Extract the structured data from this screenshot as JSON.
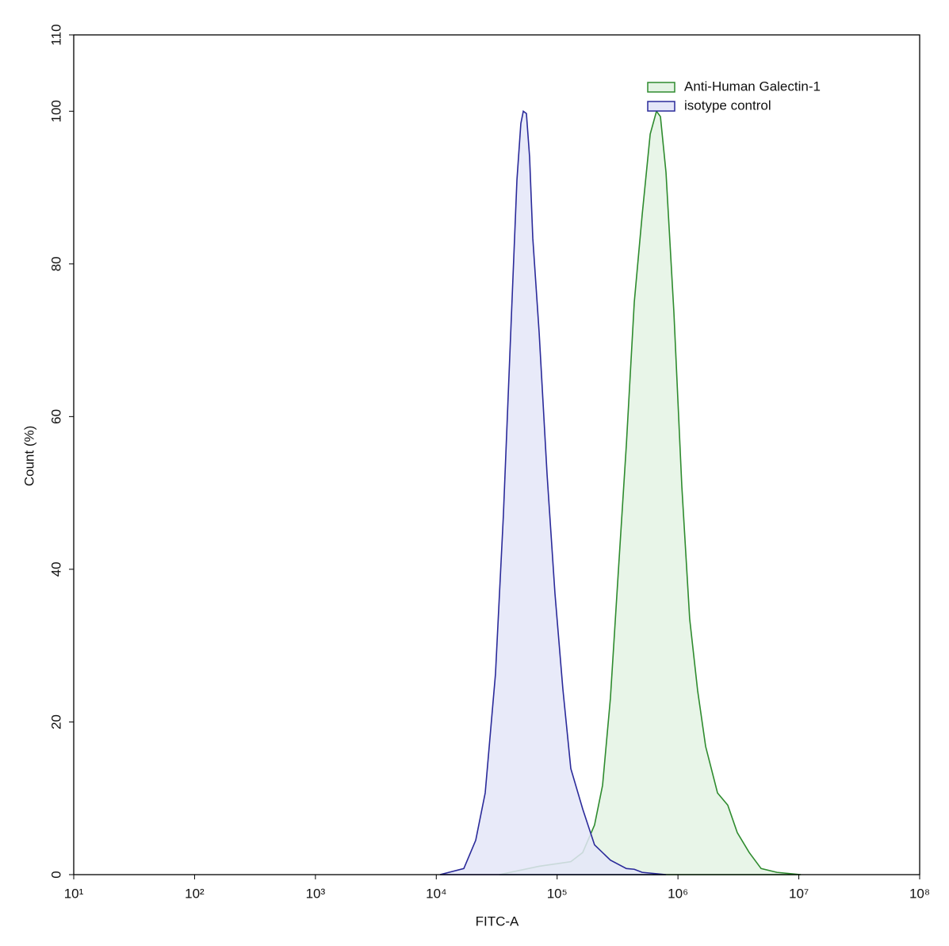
{
  "chart_data": {
    "type": "area",
    "x_label": "FITC-A",
    "y_label": "Count (%)",
    "log_x": true,
    "xlim": [
      10,
      100000000
    ],
    "xticks": [
      {
        "value": 10,
        "label": "10¹"
      },
      {
        "value": 100,
        "label": "10²"
      },
      {
        "value": 1000,
        "label": "10³"
      },
      {
        "value": 10000,
        "label": "10⁴"
      },
      {
        "value": 100000,
        "label": "10⁵"
      },
      {
        "value": 1000000,
        "label": "10⁶"
      },
      {
        "value": 10000000,
        "label": "10⁷"
      },
      {
        "value": 100000000,
        "label": "10⁸"
      }
    ],
    "ylim": [
      0,
      110
    ],
    "yticks": [
      0,
      20,
      40,
      60,
      80,
      100,
      110
    ],
    "legend": "upper right",
    "series": [
      {
        "name": "Anti-Human Galectin-1",
        "color": "#2e8b2e",
        "fill": "#e4f3e4",
        "x": [
          33300,
          71000,
          96000,
          129800,
          162800,
          204000,
          237700,
          276000,
          321000,
          374000,
          435000,
          506000,
          589000,
          664000,
          716000,
          796000,
          925000,
          1076000,
          1250000,
          1455000,
          1694000,
          2125000,
          2583000,
          3096000,
          3885000,
          4875000,
          6595000,
          10380000
        ],
        "values": [
          0,
          1.1,
          1.4,
          1.7,
          2.9,
          6.5,
          11.7,
          23.1,
          39.7,
          56.3,
          75,
          86.5,
          97,
          100,
          99.3,
          92,
          73.7,
          50.9,
          33.5,
          24.1,
          16.8,
          10.7,
          9.1,
          5.5,
          2.9,
          0.8,
          0.3,
          0
        ]
      },
      {
        "name": "isotype control",
        "color": "#2a2a9a",
        "fill": "#e4e6f8",
        "x": [
          10740,
          16900,
          21200,
          25400,
          30900,
          35900,
          41800,
          46500,
          50100,
          52500,
          55700,
          59200,
          62900,
          71000,
          82600,
          96000,
          111600,
          129800,
          162800,
          204000,
          276000,
          374000,
          435000,
          506000,
          796000
        ],
        "values": [
          0,
          0.8,
          4.5,
          10.7,
          26.3,
          47,
          73,
          91,
          98.4,
          100,
          99.7,
          94,
          83.4,
          71,
          52.4,
          36.8,
          24.3,
          13.9,
          8.6,
          3.9,
          1.9,
          0.8,
          0.7,
          0.3,
          0
        ]
      }
    ]
  }
}
